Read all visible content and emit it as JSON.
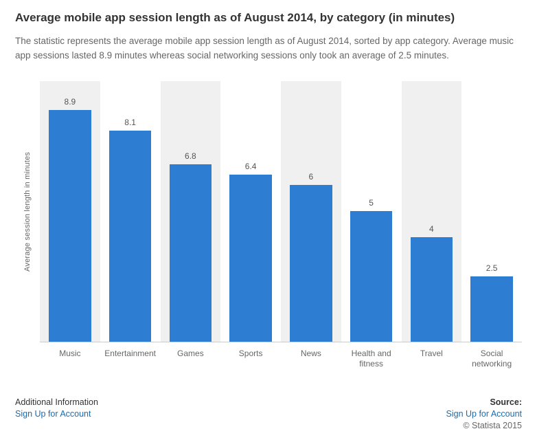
{
  "header": {
    "title": "Average mobile app session length as of August 2014, by category (in minutes)",
    "description": "The statistic represents the average mobile app session length as of August 2014, sorted by app category. Average music app sessions lasted 8.9 minutes whereas social networking sessions only took an average of 2.5 minutes."
  },
  "chart_data": {
    "type": "bar",
    "title": "Average mobile app session length as of August 2014, by category (in minutes)",
    "categories": [
      "Music",
      "Entertainment",
      "Games",
      "Sports",
      "News",
      "Health and fitness",
      "Travel",
      "Social networking"
    ],
    "values": [
      8.9,
      8.1,
      6.8,
      6.4,
      6,
      5,
      4,
      2.5
    ],
    "xlabel": "",
    "ylabel": "Average session length in minutes",
    "ylim": [
      0,
      10
    ],
    "grid": "off",
    "legend": "none",
    "bar_color": "#2d7dd2",
    "stripe_color": "#f0f0f0"
  },
  "footer": {
    "additional_info_label": "Additional Information",
    "signup_link": "Sign Up for Account",
    "source_label": "Source:",
    "source_link": "Sign Up for Account",
    "copyright": "© Statista 2015"
  }
}
